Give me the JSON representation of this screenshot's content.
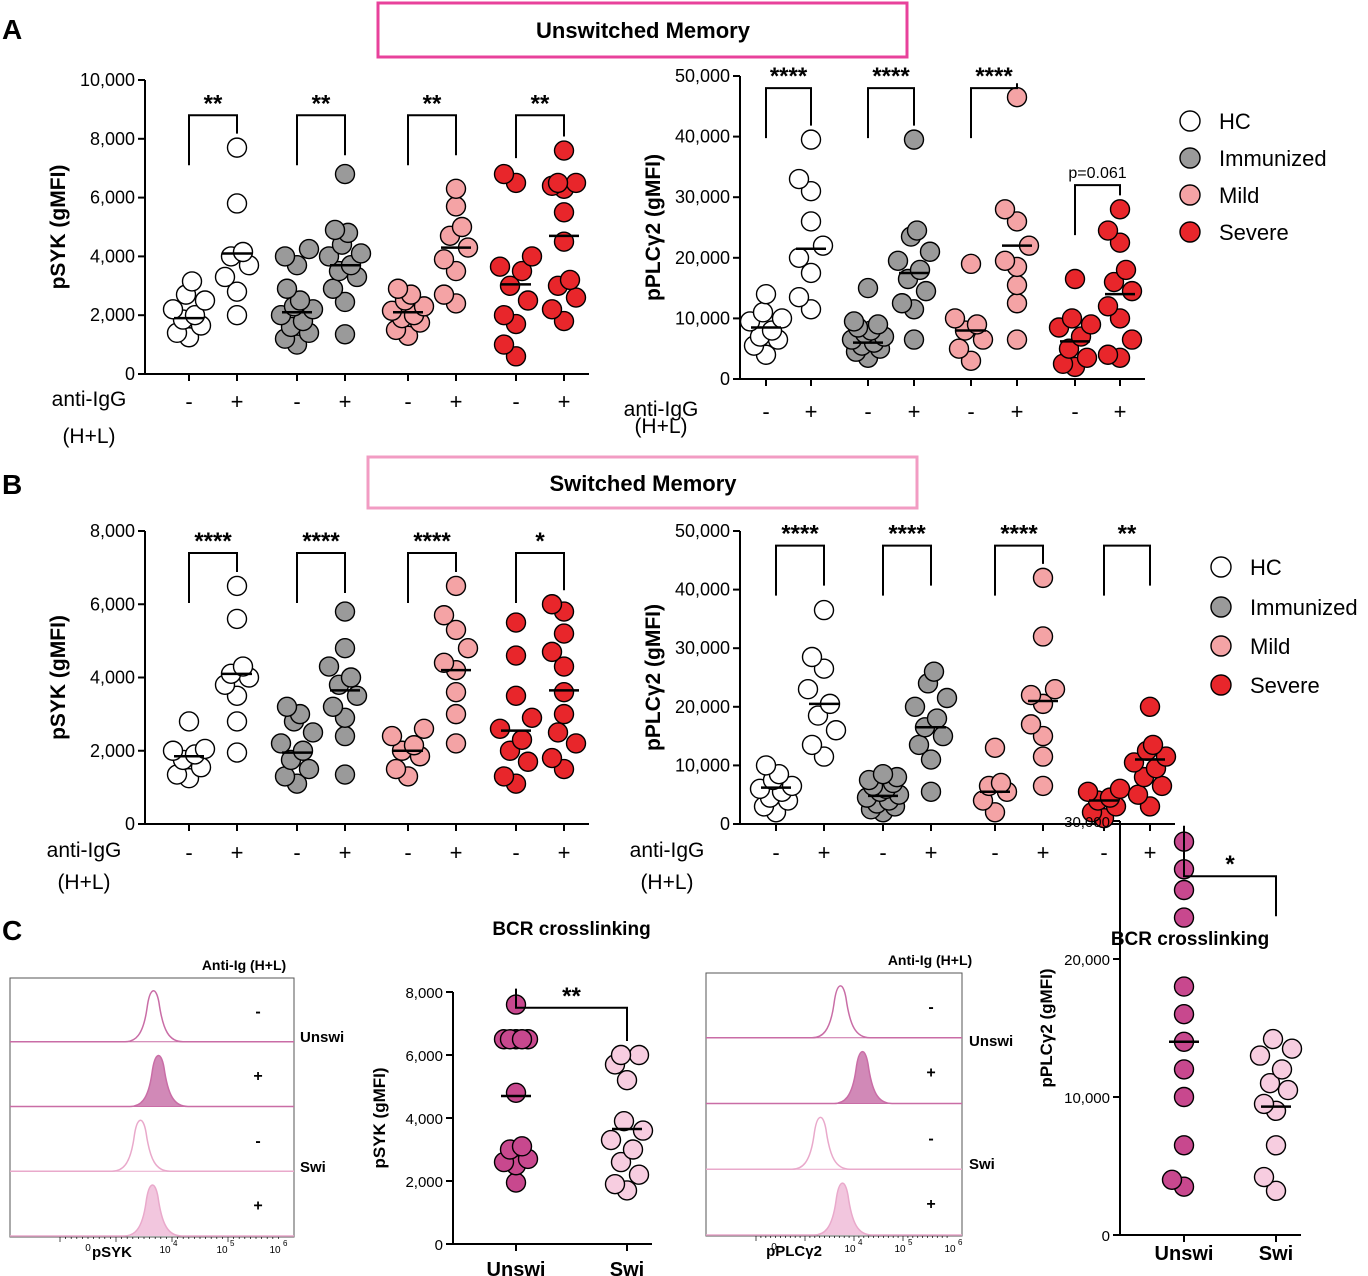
{
  "colors": {
    "hc": "#ffffff",
    "immunized": "#9a9a9a",
    "mild": "#f4a3a5",
    "severe": "#e8262b",
    "unswi": "#c8488e",
    "swi": "#f7cde0",
    "unsw_box": "#e8419b",
    "sw_box": "#f29cc3",
    "hist_dark": "#c96da6",
    "hist_dark_fill": "#d189b7",
    "hist_light": "#e9a9cb",
    "hist_light_fill": "#f2c6de"
  },
  "panel_labels": [
    "A",
    "B",
    "C"
  ],
  "section_titles": {
    "A": "Unswitched Memory",
    "B": "Switched Memory"
  },
  "stim": {
    "label1": "anti-IgG",
    "label2": "(H+L)",
    "signs": [
      "-",
      "+",
      "-",
      "+",
      "-",
      "+",
      "-",
      "+"
    ]
  },
  "legend": {
    "entries": [
      "HC",
      "Immunized",
      "Mild",
      "Severe"
    ]
  },
  "chart_data": [
    {
      "id": "A1",
      "type": "scatter",
      "panel": "A",
      "title": "",
      "xlabel": "anti-IgG (H+L)",
      "ylabel": "pSYK (gMFI)",
      "ylim": [
        0,
        10000
      ],
      "yticks": [
        "0",
        "2,000",
        "4,000",
        "6,000",
        "8,000",
        "10,000"
      ],
      "groups": [
        "HC",
        "HC",
        "Immunized",
        "Immunized",
        "Mild",
        "Mild",
        "Severe",
        "Severe"
      ],
      "stimulation": [
        "-",
        "+",
        "-",
        "+",
        "-",
        "+",
        "-",
        "+"
      ],
      "points": [
        [
          1250,
          1400,
          1650,
          1850,
          2000,
          2200,
          2500,
          2700,
          3150
        ],
        [
          2000,
          2800,
          3300,
          3700,
          4000,
          4150,
          5800,
          7700
        ],
        [
          1000,
          1200,
          1400,
          1600,
          1800,
          2000,
          2200,
          2300,
          2500,
          2900,
          3700,
          4000,
          4250
        ],
        [
          1350,
          2450,
          2900,
          3300,
          3500,
          3700,
          4000,
          4100,
          4400,
          4800,
          4900,
          6800
        ],
        [
          1300,
          1500,
          1750,
          1900,
          2000,
          2150,
          2300,
          2500,
          2700,
          2900
        ],
        [
          2400,
          2700,
          3500,
          3900,
          4300,
          4700,
          5000,
          5700,
          6300
        ],
        [
          600,
          1000,
          1700,
          2000,
          2500,
          3000,
          3500,
          3650,
          4000,
          6500,
          6800
        ],
        [
          1800,
          2200,
          2600,
          3000,
          3200,
          4500,
          5500,
          6300,
          6400,
          6500,
          6500,
          7600
        ]
      ],
      "medians": [
        1900,
        4100,
        2100,
        3700,
        2100,
        4300,
        3050,
        4700
      ],
      "comparisons": [
        {
          "pair": [
            0,
            1
          ],
          "label": "**",
          "top": 8800
        },
        {
          "pair": [
            2,
            3
          ],
          "label": "**",
          "top": 8800
        },
        {
          "pair": [
            4,
            5
          ],
          "label": "**",
          "top": 8800
        },
        {
          "pair": [
            6,
            7
          ],
          "label": "**",
          "top": 8800
        }
      ]
    },
    {
      "id": "A2",
      "type": "scatter",
      "panel": "A",
      "title": "",
      "xlabel": "anti-IgG (H+L)",
      "ylabel": "pPLCγ2 (gMFI)",
      "ylim": [
        0,
        50000
      ],
      "yticks": [
        "0",
        "10,000",
        "20,000",
        "30,000",
        "40,000",
        "50,000"
      ],
      "groups": [
        "HC",
        "HC",
        "Immunized",
        "Immunized",
        "Mild",
        "Mild",
        "Severe",
        "Severe"
      ],
      "stimulation": [
        "-",
        "+",
        "-",
        "+",
        "-",
        "+",
        "-",
        "+"
      ],
      "points": [
        [
          4000,
          5500,
          6500,
          7000,
          8000,
          9500,
          10000,
          11000,
          14000
        ],
        [
          11500,
          13500,
          17500,
          20000,
          22000,
          26000,
          31000,
          33000,
          39500
        ],
        [
          3500,
          4500,
          5000,
          5500,
          6000,
          6500,
          7000,
          7500,
          8000,
          8500,
          9000,
          9500,
          15000
        ],
        [
          6500,
          11500,
          12500,
          14500,
          16500,
          18000,
          19500,
          21000,
          23500,
          24500,
          39500
        ],
        [
          3000,
          5000,
          6500,
          8000,
          9000,
          10000,
          19000
        ],
        [
          6500,
          12500,
          15500,
          18500,
          19500,
          22000,
          26000,
          28000,
          46500
        ],
        [
          2000,
          2500,
          3500,
          5000,
          7000,
          8500,
          9000,
          10000,
          16500
        ],
        [
          3500,
          4000,
          6500,
          10000,
          12000,
          14500,
          16000,
          18000,
          22500,
          24500,
          28000
        ]
      ],
      "medians": [
        8500,
        21500,
        6000,
        17500,
        8000,
        22000,
        6200,
        14000
      ],
      "comparisons": [
        {
          "pair": [
            0,
            1
          ],
          "label": "****",
          "top": 48000
        },
        {
          "pair": [
            2,
            3
          ],
          "label": "****",
          "top": 48000
        },
        {
          "pair": [
            4,
            5
          ],
          "label": "****",
          "top": 48000
        },
        {
          "pair": [
            6,
            7
          ],
          "label": "p=0.061",
          "top": 32000
        }
      ]
    },
    {
      "id": "B1",
      "type": "scatter",
      "panel": "B",
      "title": "",
      "xlabel": "anti-IgG (H+L)",
      "ylabel": "pSYK (gMFI)",
      "ylim": [
        0,
        8000
      ],
      "yticks": [
        "0",
        "2,000",
        "4,000",
        "6,000",
        "8,000"
      ],
      "groups": [
        "HC",
        "HC",
        "Immunized",
        "Immunized",
        "Mild",
        "Mild",
        "Severe",
        "Severe"
      ],
      "stimulation": [
        "-",
        "+",
        "-",
        "+",
        "-",
        "+",
        "-",
        "+"
      ],
      "points": [
        [
          1250,
          1350,
          1550,
          1750,
          1900,
          2000,
          2050,
          2800
        ],
        [
          1950,
          2800,
          3500,
          3800,
          4000,
          4100,
          4300,
          5600,
          6500
        ],
        [
          1100,
          1300,
          1500,
          1750,
          2000,
          2200,
          2500,
          2800,
          3000,
          3200
        ],
        [
          1350,
          2400,
          2900,
          3200,
          3500,
          3800,
          4000,
          4300,
          4800,
          5800
        ],
        [
          1300,
          1500,
          1850,
          2000,
          2150,
          2400,
          2600
        ],
        [
          2200,
          3000,
          3600,
          4200,
          4400,
          4800,
          5300,
          5700,
          6500
        ],
        [
          1100,
          1300,
          1700,
          2000,
          2300,
          2600,
          2900,
          3500,
          4600,
          5500
        ],
        [
          1500,
          1800,
          2200,
          2500,
          3000,
          3600,
          4300,
          4700,
          5200,
          5800,
          6000
        ]
      ],
      "medians": [
        1850,
        4100,
        1950,
        3650,
        2000,
        4200,
        2550,
        3650
      ],
      "comparisons": [
        {
          "pair": [
            0,
            1
          ],
          "label": "****",
          "top": 7400
        },
        {
          "pair": [
            2,
            3
          ],
          "label": "****",
          "top": 7400
        },
        {
          "pair": [
            4,
            5
          ],
          "label": "****",
          "top": 7400
        },
        {
          "pair": [
            6,
            7
          ],
          "label": "*",
          "top": 7400
        }
      ]
    },
    {
      "id": "B2",
      "type": "scatter",
      "panel": "B",
      "title": "",
      "xlabel": "anti-IgG (H+L)",
      "ylabel": "pPLCγ2 (gMFI)",
      "ylim": [
        0,
        50000
      ],
      "yticks": [
        "0",
        "10,000",
        "20,000",
        "30,000",
        "40,000",
        "50,000"
      ],
      "groups": [
        "HC",
        "HC",
        "Immunized",
        "Immunized",
        "Mild",
        "Mild",
        "Severe",
        "Severe"
      ],
      "stimulation": [
        "-",
        "+",
        "-",
        "+",
        "-",
        "+",
        "-",
        "+"
      ],
      "points": [
        [
          2000,
          3000,
          4000,
          4500,
          5500,
          6000,
          6500,
          7500,
          8500,
          10000
        ],
        [
          11500,
          13500,
          16000,
          18500,
          20500,
          23000,
          26500,
          28500,
          36500
        ],
        [
          2000,
          2500,
          3000,
          3500,
          4000,
          4500,
          5000,
          5500,
          6000,
          6500,
          7000,
          7500,
          8000,
          8500
        ],
        [
          5500,
          11000,
          13500,
          15000,
          16500,
          18000,
          20000,
          21500,
          24000,
          26000
        ],
        [
          2000,
          4000,
          5500,
          6500,
          7000,
          13000
        ],
        [
          6500,
          11500,
          15000,
          17000,
          20500,
          22000,
          23000,
          32000,
          42000
        ],
        [
          1000,
          2000,
          3000,
          4000,
          4500,
          5500,
          6000
        ],
        [
          3000,
          5000,
          6500,
          8000,
          9500,
          10500,
          11500,
          12500,
          13500,
          20000
        ]
      ],
      "medians": [
        6200,
        20500,
        4800,
        16500,
        5500,
        21000,
        4000,
        11000
      ],
      "comparisons": [
        {
          "pair": [
            0,
            1
          ],
          "label": "****",
          "top": 47500
        },
        {
          "pair": [
            2,
            3
          ],
          "label": "****",
          "top": 47500
        },
        {
          "pair": [
            4,
            5
          ],
          "label": "****",
          "top": 47500
        },
        {
          "pair": [
            6,
            7
          ],
          "label": "**",
          "top": 47500
        }
      ]
    },
    {
      "id": "C1",
      "type": "scatter",
      "panel": "C",
      "title": "BCR crosslinking",
      "xlabel": "",
      "ylabel": "pSYK (gMFI)",
      "ylim": [
        0,
        8000
      ],
      "yticks": [
        "0",
        "2,000",
        "4,000",
        "6,000",
        "8,000"
      ],
      "categories": [
        "Unswi",
        "Swi"
      ],
      "points": [
        [
          1950,
          2500,
          2600,
          2700,
          3000,
          3100,
          4800,
          6500,
          6500,
          6500,
          6500,
          6500,
          7600
        ],
        [
          1700,
          1900,
          2200,
          2600,
          3000,
          3300,
          3600,
          3900,
          5200,
          5700,
          6000,
          6000
        ]
      ],
      "medians": [
        4700,
        3650
      ],
      "comparisons": [
        {
          "pair": [
            0,
            1
          ],
          "label": "**",
          "top": 7500
        }
      ]
    },
    {
      "id": "C2",
      "type": "scatter",
      "panel": "C",
      "title": "BCR crosslinking",
      "xlabel": "",
      "ylabel": "pPLCγ2 (gMFI)",
      "ylim": [
        0,
        30000
      ],
      "yticks": [
        "0",
        "10,000",
        "20,000",
        "30,000"
      ],
      "categories": [
        "Unswi",
        "Swi"
      ],
      "points": [
        [
          3500,
          4000,
          6500,
          10000,
          12000,
          14000,
          16000,
          18000,
          23000,
          25000,
          26500,
          28500
        ],
        [
          3200,
          4200,
          6500,
          9000,
          9500,
          10500,
          11000,
          12000,
          13000,
          13500,
          14200
        ]
      ],
      "medians": [
        14000,
        9300
      ],
      "comparisons": [
        {
          "pair": [
            0,
            1
          ],
          "label": "*",
          "top": 26000
        }
      ]
    }
  ],
  "histograms": [
    {
      "id": "H1",
      "header": "Anti-Ig (H+L)",
      "xlabel": "pSYK",
      "xtick_labels": [
        "0",
        "10",
        "4",
        "10",
        "5",
        "10",
        "6"
      ],
      "row_labels": [
        "Unswi",
        "Swi"
      ],
      "row_signs": [
        "-",
        "+",
        "-",
        "+"
      ]
    },
    {
      "id": "H2",
      "header": "Anti-Ig (H+L)",
      "xlabel": "pPLCγ2",
      "xtick_labels": [
        "0",
        "10",
        "4",
        "10",
        "5",
        "10",
        "6"
      ],
      "row_labels": [
        "Unswi",
        "Swi"
      ],
      "row_signs": [
        "-",
        "+",
        "-",
        "+"
      ]
    }
  ]
}
